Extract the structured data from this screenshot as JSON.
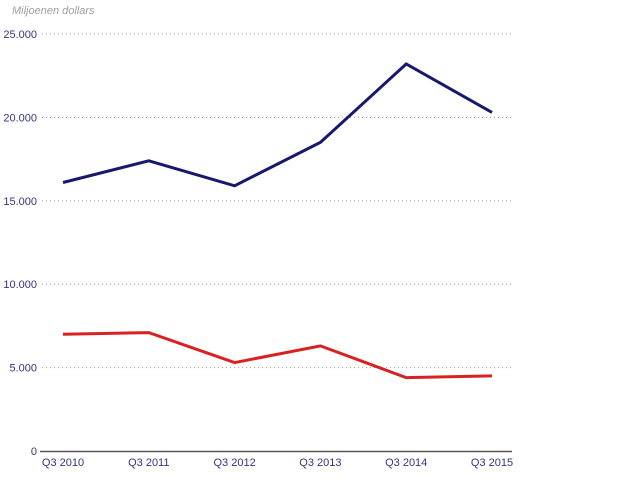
{
  "chart_data": {
    "type": "line",
    "title": "",
    "ylabel": "Miljoenen dollars",
    "xlabel": "",
    "categories": [
      "Q3 2010",
      "Q3 2011",
      "Q3 2012",
      "Q3 2013",
      "Q3 2014",
      "Q3 2015"
    ],
    "series": [
      {
        "name": "dark-blue-series",
        "color": "#18186d",
        "values": [
          16100,
          17400,
          15900,
          18500,
          23200,
          20300
        ]
      },
      {
        "name": "red-series",
        "color": "#d92121",
        "values": [
          7000,
          7100,
          5300,
          6300,
          4400,
          4500
        ]
      }
    ],
    "ylim": [
      0,
      25000
    ],
    "ytick_values": [
      0,
      5000,
      10000,
      15000,
      20000,
      25000
    ],
    "ytick_labels": [
      "0",
      "5.000",
      "10.000",
      "15.000",
      "20.000",
      "25.000"
    ],
    "grid": "horizontal-dotted",
    "legend": "none",
    "colors": {
      "axis": "#595959",
      "gridline": "#999999",
      "tick_label": "#34347e",
      "unit_label": "#a0a0a5",
      "background": "#ffffff"
    }
  }
}
